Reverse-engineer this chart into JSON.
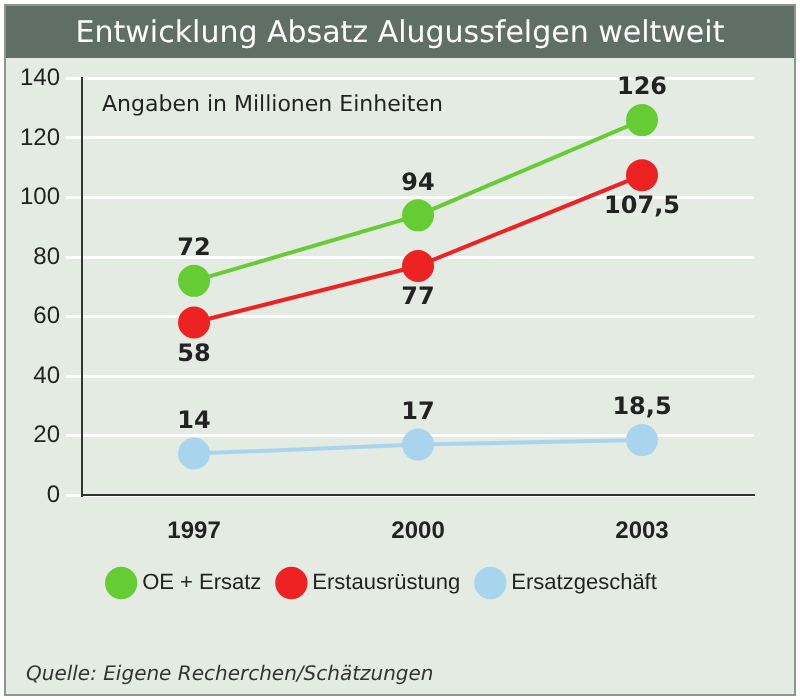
{
  "chart_data": {
    "type": "line",
    "title": "Entwicklung Absatz Alugussfelgen weltweit",
    "categories": [
      "1997",
      "2000",
      "2003"
    ],
    "series": [
      {
        "name": "OE + Ersatz",
        "color": "#66cc33",
        "values": [
          72,
          94,
          126
        ],
        "value_labels": [
          "72",
          "94",
          "126"
        ]
      },
      {
        "name": "Erstausrüstung",
        "color": "#ee2222",
        "values": [
          58,
          77,
          107.5
        ],
        "value_labels": [
          "58",
          "77",
          "107,5"
        ]
      },
      {
        "name": "Ersatzgeschäft",
        "color": "#a8d4ee",
        "values": [
          14,
          17,
          18.5
        ],
        "value_labels": [
          "14",
          "17",
          "18,5"
        ]
      }
    ],
    "ylim": [
      0,
      140
    ],
    "yticks": [
      0,
      20,
      40,
      60,
      80,
      100,
      120,
      140
    ],
    "grid": "y",
    "legend": "bottom",
    "marker": "circle",
    "line_style": "solid",
    "annotations": [
      "Angaben in Millionen Einheiten",
      "Quelle: Eigene Recherchen/Schätzungen"
    ]
  }
}
